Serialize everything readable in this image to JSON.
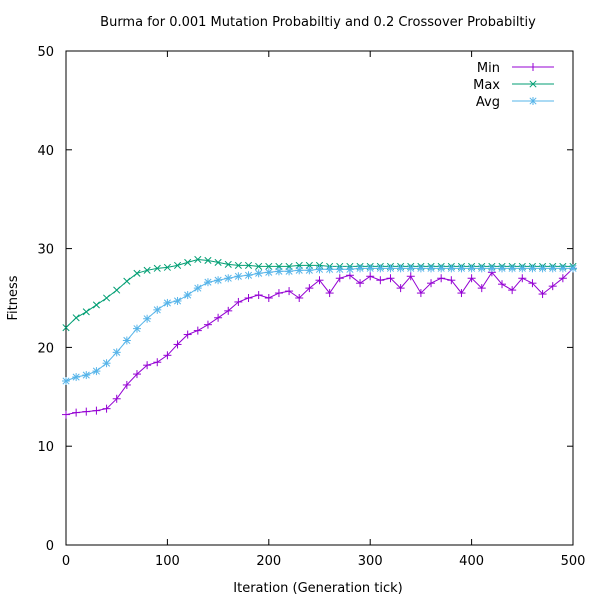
{
  "chart_data": {
    "type": "line",
    "title": "Burma for 0.001 Mutation Probabiltiy and 0.2 Crossover Probabiltiy",
    "xlabel": "Iteration (Generation tick)",
    "ylabel": "Fitness",
    "xlim": [
      0,
      500
    ],
    "ylim": [
      0,
      50
    ],
    "xticks": [
      0,
      100,
      200,
      300,
      400,
      500
    ],
    "yticks": [
      0,
      10,
      20,
      30,
      40,
      50
    ],
    "xtick_labels": [
      "0",
      "100",
      "200",
      "300",
      "400",
      "500"
    ],
    "ytick_labels": [
      "0",
      "10",
      "20",
      "30",
      "40",
      "50"
    ],
    "grid": false,
    "legend_position": "top-right",
    "x": [
      0,
      10,
      20,
      30,
      40,
      50,
      60,
      70,
      80,
      90,
      100,
      110,
      120,
      130,
      140,
      150,
      160,
      170,
      180,
      190,
      200,
      210,
      220,
      230,
      240,
      250,
      260,
      270,
      280,
      290,
      300,
      310,
      320,
      330,
      340,
      350,
      360,
      370,
      380,
      390,
      400,
      410,
      420,
      430,
      440,
      450,
      460,
      470,
      480,
      490,
      500
    ],
    "series": [
      {
        "name": "Min",
        "marker": "+",
        "color": "#9400d3",
        "values": [
          13.2,
          13.4,
          13.5,
          13.6,
          13.8,
          14.8,
          16.2,
          17.3,
          18.2,
          18.5,
          19.2,
          20.3,
          21.3,
          21.7,
          22.3,
          23.0,
          23.7,
          24.6,
          25.0,
          25.3,
          25.0,
          25.5,
          25.7,
          25.0,
          26.0,
          26.8,
          25.5,
          27.0,
          27.3,
          26.5,
          27.2,
          26.8,
          27.0,
          26.0,
          27.2,
          25.5,
          26.5,
          27.0,
          26.8,
          25.5,
          27.0,
          26.0,
          27.6,
          26.4,
          25.8,
          27.0,
          26.5,
          25.4,
          26.2,
          27.0,
          28.0
        ]
      },
      {
        "name": "Max",
        "marker": "x",
        "color": "#009e73",
        "values": [
          22.0,
          23.0,
          23.6,
          24.3,
          25.0,
          25.8,
          26.7,
          27.5,
          27.8,
          28.0,
          28.1,
          28.3,
          28.6,
          28.9,
          28.8,
          28.6,
          28.4,
          28.3,
          28.3,
          28.2,
          28.2,
          28.2,
          28.2,
          28.3,
          28.3,
          28.3,
          28.2,
          28.2,
          28.2,
          28.2,
          28.2,
          28.2,
          28.2,
          28.2,
          28.2,
          28.2,
          28.2,
          28.2,
          28.2,
          28.2,
          28.2,
          28.2,
          28.2,
          28.2,
          28.2,
          28.2,
          28.2,
          28.2,
          28.2,
          28.2,
          28.2
        ]
      },
      {
        "name": "Avg",
        "marker": "*",
        "color": "#56b4e9",
        "values": [
          16.6,
          17.0,
          17.2,
          17.6,
          18.4,
          19.5,
          20.7,
          21.9,
          22.9,
          23.8,
          24.5,
          24.7,
          25.3,
          26.0,
          26.6,
          26.8,
          27.0,
          27.2,
          27.3,
          27.5,
          27.6,
          27.7,
          27.7,
          27.8,
          27.8,
          27.9,
          27.9,
          27.9,
          27.9,
          28.0,
          28.0,
          28.0,
          28.0,
          28.0,
          28.0,
          28.0,
          28.0,
          28.0,
          28.0,
          28.0,
          28.0,
          28.0,
          28.0,
          28.0,
          28.0,
          28.0,
          28.0,
          28.0,
          28.0,
          28.0,
          28.0
        ]
      }
    ]
  }
}
